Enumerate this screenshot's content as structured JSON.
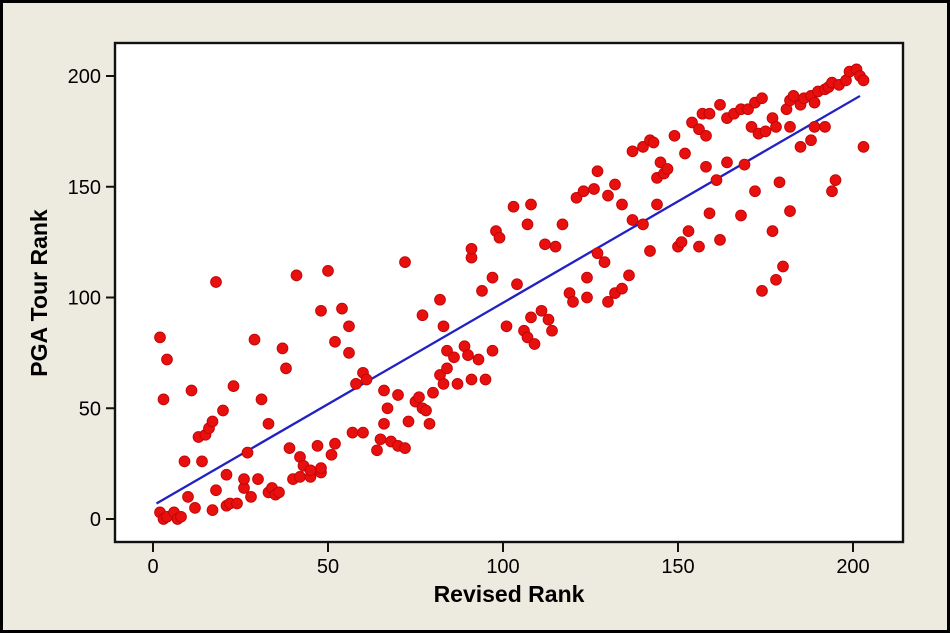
{
  "window": {
    "background_color": "#EDEAE0",
    "border_color": "#000000"
  },
  "chart_data": {
    "type": "scatter",
    "title": "",
    "xlabel": "Revised Rank",
    "ylabel": "PGA Tour Rank",
    "x_ticks": [
      0,
      50,
      100,
      150,
      200
    ],
    "y_ticks": [
      0,
      50,
      100,
      150,
      200
    ],
    "xlim": [
      -11,
      214
    ],
    "ylim": [
      -10,
      215
    ],
    "grid": false,
    "legend": "none",
    "plot_bg": "#FFFFFF",
    "frame_color": "#111111",
    "point_color": "#E8100E",
    "point_edge_color": "#C00505",
    "line_color": "#2121C4",
    "fit_line": {
      "x1": 1,
      "y1": 7,
      "x2": 202,
      "y2": 191
    },
    "points": [
      [
        2,
        3
      ],
      [
        3,
        0
      ],
      [
        4,
        1
      ],
      [
        6,
        3
      ],
      [
        7,
        0
      ],
      [
        8,
        1
      ],
      [
        2,
        82
      ],
      [
        4,
        72
      ],
      [
        3,
        54
      ],
      [
        9,
        26
      ],
      [
        10,
        10
      ],
      [
        11,
        58
      ],
      [
        12,
        5
      ],
      [
        13,
        37
      ],
      [
        14,
        26
      ],
      [
        15,
        38
      ],
      [
        16,
        41
      ],
      [
        17,
        4
      ],
      [
        17,
        44
      ],
      [
        18,
        13
      ],
      [
        18,
        107
      ],
      [
        20,
        49
      ],
      [
        21,
        6
      ],
      [
        21,
        20
      ],
      [
        22,
        7
      ],
      [
        23,
        60
      ],
      [
        24,
        7
      ],
      [
        26,
        14
      ],
      [
        26,
        18
      ],
      [
        27,
        30
      ],
      [
        28,
        10
      ],
      [
        29,
        81
      ],
      [
        30,
        18
      ],
      [
        31,
        54
      ],
      [
        33,
        12
      ],
      [
        33,
        43
      ],
      [
        34,
        14
      ],
      [
        35,
        11
      ],
      [
        36,
        12
      ],
      [
        37,
        77
      ],
      [
        38,
        68
      ],
      [
        39,
        32
      ],
      [
        40,
        18
      ],
      [
        41,
        110
      ],
      [
        42,
        19
      ],
      [
        42,
        28
      ],
      [
        43,
        24
      ],
      [
        45,
        19
      ],
      [
        45,
        22
      ],
      [
        47,
        33
      ],
      [
        48,
        21
      ],
      [
        48,
        23
      ],
      [
        48,
        94
      ],
      [
        50,
        112
      ],
      [
        51,
        29
      ],
      [
        52,
        34
      ],
      [
        52,
        80
      ],
      [
        54,
        95
      ],
      [
        56,
        75
      ],
      [
        56,
        87
      ],
      [
        57,
        39
      ],
      [
        58,
        61
      ],
      [
        60,
        39
      ],
      [
        60,
        66
      ],
      [
        61,
        63
      ],
      [
        64,
        31
      ],
      [
        65,
        36
      ],
      [
        66,
        43
      ],
      [
        66,
        58
      ],
      [
        67,
        50
      ],
      [
        68,
        35
      ],
      [
        70,
        33
      ],
      [
        70,
        56
      ],
      [
        72,
        32
      ],
      [
        72,
        116
      ],
      [
        73,
        44
      ],
      [
        75,
        53
      ],
      [
        76,
        55
      ],
      [
        77,
        50
      ],
      [
        77,
        92
      ],
      [
        78,
        49
      ],
      [
        79,
        43
      ],
      [
        80,
        57
      ],
      [
        82,
        65
      ],
      [
        82,
        99
      ],
      [
        83,
        61
      ],
      [
        83,
        87
      ],
      [
        84,
        68
      ],
      [
        84,
        76
      ],
      [
        86,
        73
      ],
      [
        87,
        61
      ],
      [
        89,
        78
      ],
      [
        90,
        74
      ],
      [
        91,
        63
      ],
      [
        91,
        118
      ],
      [
        91,
        122
      ],
      [
        93,
        72
      ],
      [
        94,
        103
      ],
      [
        95,
        63
      ],
      [
        97,
        76
      ],
      [
        97,
        109
      ],
      [
        98,
        130
      ],
      [
        99,
        127
      ],
      [
        101,
        87
      ],
      [
        103,
        141
      ],
      [
        104,
        106
      ],
      [
        106,
        85
      ],
      [
        107,
        82
      ],
      [
        107,
        133
      ],
      [
        108,
        91
      ],
      [
        108,
        142
      ],
      [
        109,
        79
      ],
      [
        111,
        94
      ],
      [
        112,
        124
      ],
      [
        113,
        90
      ],
      [
        114,
        85
      ],
      [
        115,
        123
      ],
      [
        117,
        133
      ],
      [
        119,
        102
      ],
      [
        120,
        98
      ],
      [
        121,
        145
      ],
      [
        123,
        148
      ],
      [
        124,
        100
      ],
      [
        124,
        109
      ],
      [
        126,
        149
      ],
      [
        127,
        120
      ],
      [
        127,
        157
      ],
      [
        129,
        116
      ],
      [
        130,
        98
      ],
      [
        130,
        146
      ],
      [
        132,
        102
      ],
      [
        132,
        151
      ],
      [
        134,
        104
      ],
      [
        134,
        142
      ],
      [
        136,
        110
      ],
      [
        137,
        135
      ],
      [
        137,
        166
      ],
      [
        140,
        133
      ],
      [
        140,
        168
      ],
      [
        142,
        121
      ],
      [
        142,
        171
      ],
      [
        143,
        170
      ],
      [
        144,
        142
      ],
      [
        144,
        154
      ],
      [
        145,
        161
      ],
      [
        146,
        156
      ],
      [
        147,
        158
      ],
      [
        149,
        173
      ],
      [
        150,
        123
      ],
      [
        151,
        125
      ],
      [
        152,
        165
      ],
      [
        153,
        130
      ],
      [
        154,
        179
      ],
      [
        156,
        123
      ],
      [
        156,
        176
      ],
      [
        157,
        183
      ],
      [
        158,
        159
      ],
      [
        158,
        173
      ],
      [
        159,
        138
      ],
      [
        159,
        183
      ],
      [
        161,
        153
      ],
      [
        162,
        126
      ],
      [
        162,
        187
      ],
      [
        164,
        161
      ],
      [
        164,
        181
      ],
      [
        166,
        183
      ],
      [
        168,
        137
      ],
      [
        168,
        185
      ],
      [
        169,
        160
      ],
      [
        170,
        185
      ],
      [
        171,
        177
      ],
      [
        172,
        148
      ],
      [
        172,
        188
      ],
      [
        173,
        174
      ],
      [
        174,
        103
      ],
      [
        174,
        190
      ],
      [
        175,
        175
      ],
      [
        177,
        130
      ],
      [
        177,
        181
      ],
      [
        178,
        108
      ],
      [
        178,
        177
      ],
      [
        179,
        152
      ],
      [
        180,
        114
      ],
      [
        181,
        185
      ],
      [
        182,
        139
      ],
      [
        182,
        177
      ],
      [
        182,
        189
      ],
      [
        183,
        191
      ],
      [
        185,
        168
      ],
      [
        185,
        187
      ],
      [
        186,
        190
      ],
      [
        188,
        171
      ],
      [
        188,
        191
      ],
      [
        189,
        177
      ],
      [
        189,
        188
      ],
      [
        190,
        193
      ],
      [
        192,
        177
      ],
      [
        192,
        194
      ],
      [
        193,
        195
      ],
      [
        194,
        148
      ],
      [
        194,
        197
      ],
      [
        195,
        153
      ],
      [
        196,
        196
      ],
      [
        198,
        198
      ],
      [
        199,
        202
      ],
      [
        201,
        203
      ],
      [
        202,
        200
      ],
      [
        203,
        168
      ],
      [
        203,
        198
      ]
    ]
  }
}
